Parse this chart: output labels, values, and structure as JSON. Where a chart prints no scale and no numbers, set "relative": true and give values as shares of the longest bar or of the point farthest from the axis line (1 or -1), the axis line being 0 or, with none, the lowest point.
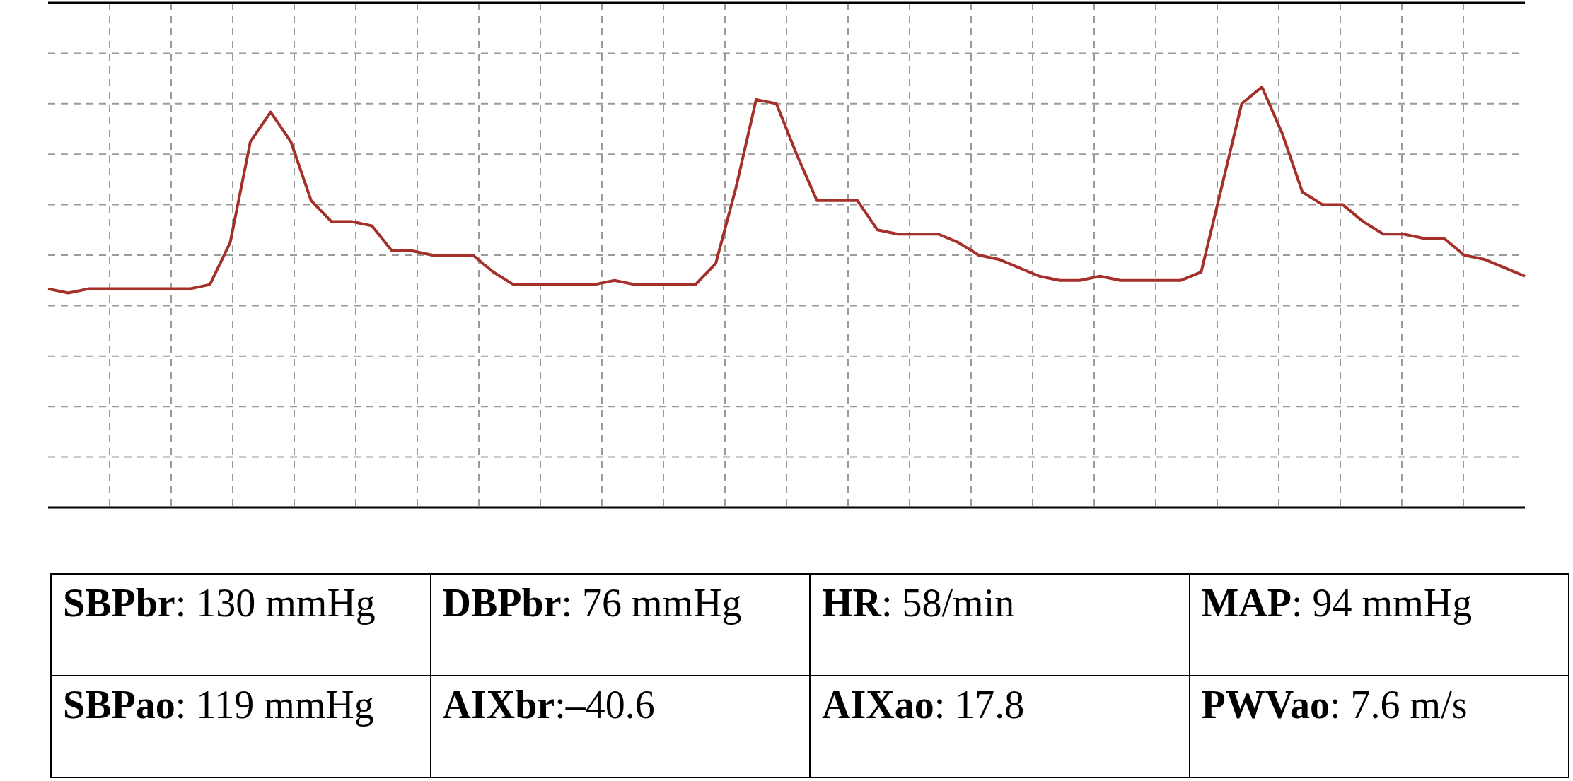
{
  "chart_data": {
    "type": "line",
    "relative": true,
    "grid": true,
    "color": "#a5302a",
    "categories": [
      null,
      null,
      null,
      null,
      null,
      null,
      null,
      null,
      null,
      null,
      null,
      null,
      null,
      null,
      null,
      null,
      null,
      null,
      null,
      null,
      null,
      null,
      null,
      null,
      null,
      null,
      null,
      null,
      null,
      null,
      null,
      null,
      null,
      null,
      null,
      null,
      null,
      null,
      null,
      null,
      null,
      null,
      null,
      null,
      null,
      null,
      null,
      null,
      null,
      null,
      null,
      null,
      null,
      null,
      null,
      null,
      null,
      null,
      null,
      null,
      null,
      null,
      null,
      null,
      null,
      null,
      null,
      null,
      null,
      null,
      null,
      null,
      null,
      null
    ],
    "values": [
      0.52,
      0.51,
      0.52,
      0.52,
      0.52,
      0.52,
      0.52,
      0.52,
      0.53,
      0.63,
      0.87,
      0.94,
      0.87,
      0.73,
      0.68,
      0.68,
      0.67,
      0.61,
      0.61,
      0.6,
      0.6,
      0.6,
      0.56,
      0.53,
      0.53,
      0.53,
      0.53,
      0.53,
      0.54,
      0.53,
      0.53,
      0.53,
      0.53,
      0.58,
      0.76,
      0.97,
      0.96,
      0.84,
      0.73,
      0.73,
      0.73,
      0.66,
      0.65,
      0.65,
      0.65,
      0.63,
      0.6,
      0.59,
      0.57,
      0.55,
      0.54,
      0.54,
      0.55,
      0.54,
      0.54,
      0.54,
      0.54,
      0.56,
      0.76,
      0.96,
      1,
      0.89,
      0.75,
      0.72,
      0.72,
      0.68,
      0.65,
      0.65,
      0.64,
      0.64,
      0.6,
      0.59,
      0.57,
      0.55
    ],
    "annotations": [
      "SBPbr: 130 mmHg",
      "DBPbr: 76 mmHg",
      "HR: 58/min",
      "MAP: 94 mmHg",
      "SBPao: 119 mmHg",
      "AIXbr:–40.6",
      "AIXao: 17.8",
      "PWVao: 7.6 m/s"
    ]
  }
}
